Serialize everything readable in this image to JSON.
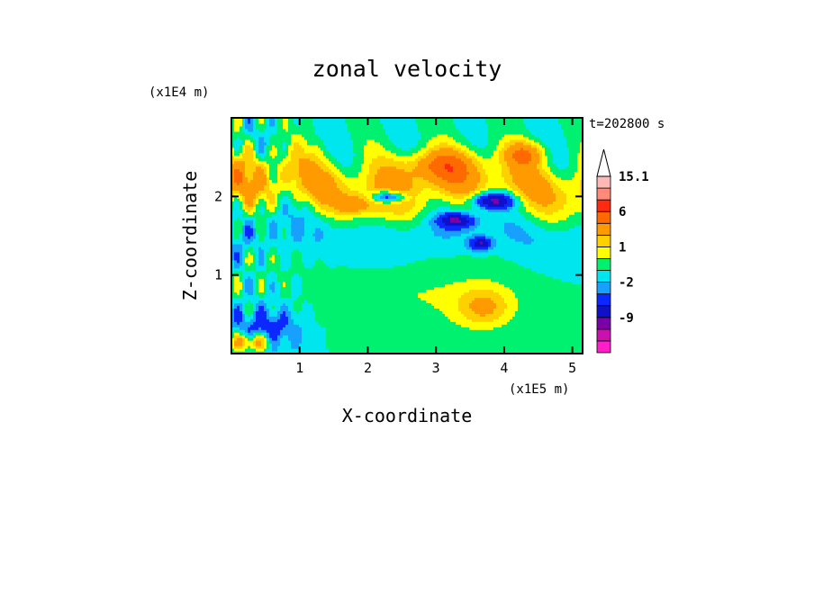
{
  "chart_data": {
    "type": "heatmap",
    "title": "zonal velocity",
    "xlabel": "X-coordinate",
    "ylabel": "Z-coordinate",
    "x_unit": "(x1E5 m)",
    "y_unit": "(x1E4 m)",
    "time_label": "t=202800 s",
    "xlim": [
      0,
      5.15
    ],
    "ylim": [
      0,
      3.0
    ],
    "xticks": [
      {
        "v": 1,
        "label": "1"
      },
      {
        "v": 2,
        "label": "2"
      },
      {
        "v": 3,
        "label": "3"
      },
      {
        "v": 4,
        "label": "4"
      },
      {
        "v": 5,
        "label": "5"
      }
    ],
    "yticks": [
      {
        "v": 1,
        "label": "1"
      },
      {
        "v": 2,
        "label": "2"
      }
    ],
    "colorbar": {
      "levels": [
        {
          "color": "#ff1fc8",
          "label": ""
        },
        {
          "color": "#cc10b0",
          "label": ""
        },
        {
          "color": "#7a00a8",
          "label": "-9"
        },
        {
          "color": "#1010c8",
          "label": ""
        },
        {
          "color": "#0a28ff",
          "label": ""
        },
        {
          "color": "#18a0ff",
          "label": "-2"
        },
        {
          "color": "#00e6ee",
          "label": ""
        },
        {
          "color": "#00f070",
          "label": ""
        },
        {
          "color": "#ffff00",
          "label": "1"
        },
        {
          "color": "#ffd000",
          "label": ""
        },
        {
          "color": "#ff9a00",
          "label": ""
        },
        {
          "color": "#ff6a00",
          "label": "6"
        },
        {
          "color": "#ff2a10",
          "label": ""
        },
        {
          "color": "#ff8a7a",
          "label": ""
        },
        {
          "color": "#ffb8b8",
          "label": "15.1"
        }
      ],
      "extend_max": true
    },
    "features": [
      {
        "type": "band",
        "z": 2.85,
        "amp": 0.05,
        "h": 0.25,
        "value": 0
      },
      {
        "type": "band",
        "z": 2.15,
        "amp": 0.1,
        "h": 0.35,
        "value": 3
      },
      {
        "type": "band",
        "z": 1.5,
        "amp": 0.15,
        "h": 0.3,
        "value": -1
      },
      {
        "type": "blob",
        "x": 2.8,
        "z": 0.75,
        "rx": 1.5,
        "rz": 0.45,
        "value": 1
      },
      {
        "type": "blob",
        "x": 3.7,
        "z": 0.6,
        "rx": 0.4,
        "rz": 0.25,
        "value": 3
      },
      {
        "type": "blob",
        "x": 3.0,
        "z": 2.4,
        "rx": 0.5,
        "rz": 0.2,
        "value": 4
      },
      {
        "type": "blob",
        "x": 2.3,
        "z": 2.0,
        "rx": 0.25,
        "rz": 0.08,
        "value": -6
      },
      {
        "type": "blob",
        "x": 3.3,
        "z": 1.7,
        "rx": 0.25,
        "rz": 0.09,
        "value": -6
      },
      {
        "type": "blob",
        "x": 3.85,
        "z": 1.95,
        "rx": 0.3,
        "rz": 0.1,
        "value": -7
      },
      {
        "type": "blob",
        "x": 3.65,
        "z": 1.4,
        "rx": 0.15,
        "rz": 0.08,
        "value": -6
      },
      {
        "type": "blob",
        "x": 4.3,
        "z": 2.55,
        "rx": 0.3,
        "rz": 0.15,
        "value": 4
      },
      {
        "type": "blob",
        "x": 1.8,
        "z": 1.9,
        "rx": 0.3,
        "rz": 0.12,
        "value": 3
      },
      {
        "type": "blob",
        "x": 0.5,
        "z": 0.3,
        "rx": 0.5,
        "rz": 0.3,
        "value": -3
      },
      {
        "type": "blob",
        "x": 0.3,
        "z": 0.15,
        "rx": 0.3,
        "rz": 0.12,
        "value": 5
      }
    ]
  }
}
